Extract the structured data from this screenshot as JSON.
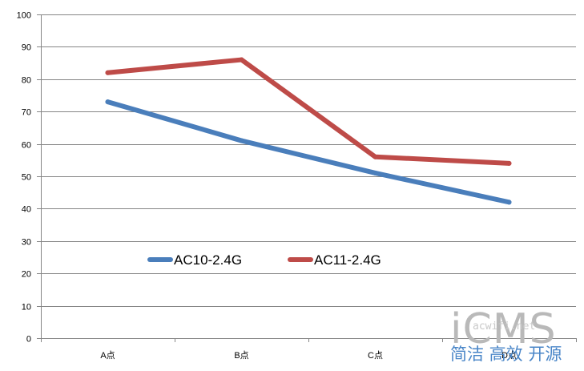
{
  "chart_data": {
    "type": "line",
    "categories": [
      "A点",
      "B点",
      "C点",
      "D点"
    ],
    "series": [
      {
        "name": "AC10-2.4G",
        "color": "#4a7ebb",
        "values": [
          73,
          61,
          51,
          42
        ]
      },
      {
        "name": "AC11-2.4G",
        "color": "#be4b48",
        "values": [
          82,
          86,
          56,
          54
        ]
      }
    ],
    "ylim": [
      0,
      100
    ],
    "yticks": [
      0,
      10,
      20,
      30,
      40,
      50,
      60,
      70,
      80,
      90,
      100
    ],
    "grid": true,
    "legend": "inside-bottom-left"
  },
  "watermark": {
    "brand": "iCMS",
    "site": "acwifi.net",
    "slogan": "简洁 高效 开源"
  }
}
